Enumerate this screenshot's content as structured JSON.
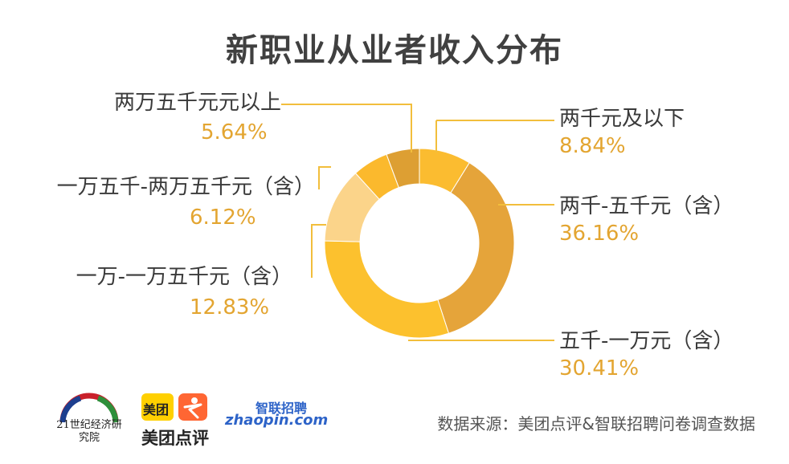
{
  "title": "新职业从业者收入分布",
  "source": "数据来源：美团点评&智联招聘问卷调查数据",
  "logos": {
    "institute_cn": "21世纪经济研究院",
    "meituan_badge": "美团",
    "meituan_name": "美团点评",
    "zhaopin_cn": "智联招聘",
    "zhaopin_en": "zhaopin.com"
  },
  "colors": {
    "accent": "#e3a531",
    "line": "#f2be3c"
  },
  "chart_data": {
    "type": "pie",
    "donut": true,
    "categories": [
      "两千元及以下",
      "两千-五千元（含）",
      "五千-一万元（含）",
      "一万-一万五千元（含）",
      "一万五千-两万五千元（含）",
      "两万五千元元以上"
    ],
    "values": [
      8.84,
      36.16,
      30.41,
      12.83,
      6.12,
      5.64
    ],
    "value_labels": [
      "8.84%",
      "36.16%",
      "30.41%",
      "12.83%",
      "6.12%",
      "5.64%"
    ],
    "colors": [
      "#fbbc30",
      "#e5a43a",
      "#fcc12e",
      "#fbd48a",
      "#fbb92d",
      "#dd9f33"
    ],
    "legend": "none"
  }
}
